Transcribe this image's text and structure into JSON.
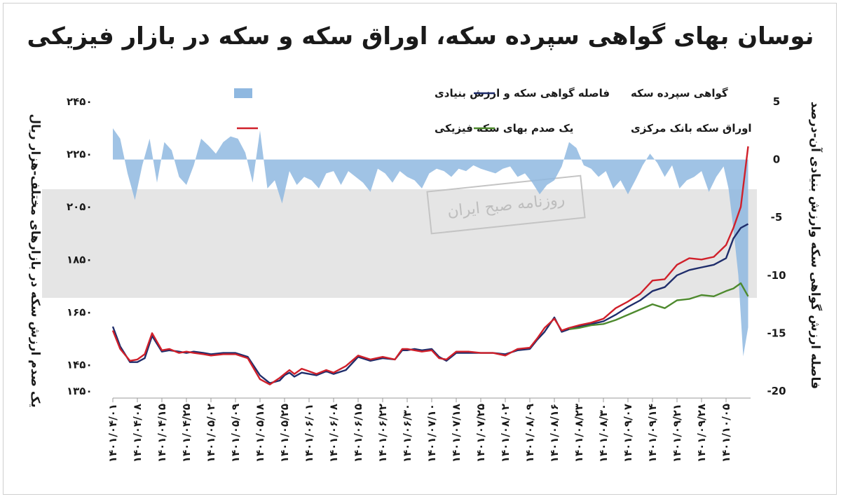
{
  "chart_data": {
    "type": "line",
    "title": "نوسان بهای گواهی سپرده سکه، اوراق سکه و سکه در بازار فیزیکی",
    "ylabel_left": "یک صدم ارزش سکه در بازارهای مختلف-هزار ریال",
    "ylabel_right": "فاصله ارزش گواهی سکه وارزش بنیادی آن-درصد",
    "ylim_left": [
      1350,
      2450
    ],
    "yticks_left": [
      "۱۳۵۰",
      "۱۴۵۰",
      "۱۶۵۰",
      "۱۸۵۰",
      "۲۰۵۰",
      "۲۲۵۰",
      "۲۴۵۰"
    ],
    "ylim_right": [
      -20,
      5
    ],
    "yticks_right": [
      "5",
      "0",
      "-5",
      "-10",
      "-15",
      "-20"
    ],
    "x_ticks": [
      "۱۴۰۱/۰۴/۰۱",
      "۱۴۰۱/۰۴/۰۸",
      "۱۴۰۱/۰۴/۱۵",
      "۱۴۰۱/۰۴/۲۵",
      "۱۴۰۱/۰۵/۰۲",
      "۱۴۰۱/۰۵/۰۹",
      "۱۴۰۱/۰۵/۱۸",
      "۱۴۰۱/۰۵/۲۵",
      "۱۴۰۱/۰۶/۰۱",
      "۱۴۰۱/۰۶/۰۸",
      "۱۴۰۱/۰۶/۱۵",
      "۱۴۰۱/۰۶/۲۲",
      "۱۴۰۱/۰۶/۳۰",
      "۱۴۰۱/۰۷/۱۰",
      "۱۴۰۱/۰۷/۱۸",
      "۱۴۰۱/۰۷/۲۵",
      "۱۴۰۱/۰۸/۰۲",
      "۱۴۰۱/۰۸/۰۹",
      "۱۴۰۱/۰۸/۱۶",
      "۱۴۰۱/۰۸/۲۳",
      "۱۴۰۱/۰۸/۳۰",
      "۱۴۰۱/۰۹/۰۷",
      "۱۴۰۱/۰۹/۱۴",
      "۱۴۰۱/۰۹/۲۱",
      "۱۴۰۱/۰۹/۲۸",
      "۱۴۰۱/۱۰/۰۵"
    ],
    "legend": {
      "placement": "top-right",
      "items": [
        {
          "label": "فاصله گواهی سکه و ارزش بنیادی",
          "kind": "area",
          "color": "#8fb8e0"
        },
        {
          "label": "گواهی سپرده سکه",
          "kind": "line",
          "color": "#1f2d6b"
        },
        {
          "label": "یک صدم بهای سکه فیزیکی",
          "kind": "line",
          "color": "#d0202a"
        },
        {
          "label": "اوراق سکه بانک مرکزی",
          "kind": "line",
          "color": "#4e8a2e"
        }
      ]
    },
    "series": [
      {
        "name": "گواهی سپرده سکه",
        "axis": "left",
        "color": "#1f2d6b",
        "x": [
          0.0,
          0.3,
          0.7,
          1.0,
          1.3,
          1.6,
          2.0,
          2.3,
          2.7,
          3.0,
          3.3,
          3.7,
          4.0,
          4.5,
          5.0,
          5.5,
          6.0,
          6.4,
          6.8,
          7.0,
          7.2,
          7.4,
          7.7,
          8.0,
          8.3,
          8.7,
          9.0,
          9.5,
          10.0,
          10.5,
          11.0,
          11.5,
          11.8,
          12.0,
          12.3,
          12.6,
          13.0,
          13.3,
          13.6,
          14.0,
          14.5,
          15.0,
          15.5,
          16.0,
          16.5,
          17.0,
          17.3,
          17.6,
          18.0,
          18.3,
          18.6,
          19.0,
          19.5,
          20.0,
          20.5,
          21.0,
          21.5,
          22.0,
          22.5,
          23.0,
          23.5,
          24.0,
          24.5,
          25.0,
          25.3,
          25.6,
          25.9
        ],
        "values": [
          1595,
          1520,
          1460,
          1460,
          1475,
          1560,
          1500,
          1505,
          1500,
          1495,
          1500,
          1495,
          1490,
          1495,
          1495,
          1480,
          1410,
          1380,
          1390,
          1410,
          1420,
          1405,
          1420,
          1415,
          1410,
          1425,
          1415,
          1430,
          1480,
          1465,
          1475,
          1470,
          1505,
          1505,
          1510,
          1505,
          1510,
          1480,
          1465,
          1495,
          1495,
          1495,
          1495,
          1490,
          1505,
          1510,
          1545,
          1575,
          1630,
          1575,
          1585,
          1595,
          1605,
          1615,
          1640,
          1670,
          1695,
          1730,
          1745,
          1790,
          1810,
          1820,
          1830,
          1855,
          1930,
          1970,
          1985
        ]
      },
      {
        "name": "یک صدم بهای سکه فیزیکی",
        "axis": "left",
        "color": "#d0202a",
        "x": [
          0.0,
          0.3,
          0.7,
          1.0,
          1.3,
          1.6,
          2.0,
          2.3,
          2.7,
          3.0,
          3.3,
          3.7,
          4.0,
          4.5,
          5.0,
          5.5,
          6.0,
          6.4,
          6.8,
          7.0,
          7.2,
          7.4,
          7.7,
          8.0,
          8.3,
          8.7,
          9.0,
          9.5,
          10.0,
          10.5,
          11.0,
          11.5,
          11.8,
          12.0,
          12.3,
          12.6,
          13.0,
          13.3,
          13.6,
          14.0,
          14.5,
          15.0,
          15.5,
          16.0,
          16.5,
          17.0,
          17.3,
          17.6,
          18.0,
          18.3,
          18.6,
          19.0,
          19.5,
          20.0,
          20.5,
          21.0,
          21.5,
          22.0,
          22.5,
          23.0,
          23.5,
          24.0,
          24.5,
          25.0,
          25.3,
          25.6,
          25.9
        ],
        "values": [
          1580,
          1510,
          1465,
          1470,
          1490,
          1570,
          1505,
          1510,
          1495,
          1500,
          1495,
          1490,
          1485,
          1490,
          1490,
          1475,
          1395,
          1375,
          1400,
          1415,
          1430,
          1415,
          1435,
          1425,
          1415,
          1430,
          1420,
          1445,
          1485,
          1470,
          1480,
          1470,
          1510,
          1510,
          1505,
          1500,
          1505,
          1475,
          1470,
          1500,
          1500,
          1495,
          1495,
          1485,
          1510,
          1515,
          1550,
          1590,
          1625,
          1580,
          1590,
          1600,
          1610,
          1625,
          1665,
          1690,
          1720,
          1770,
          1775,
          1830,
          1855,
          1850,
          1860,
          1905,
          1970,
          2050,
          2280
        ]
      },
      {
        "name": "اوراق سکه بانک مرکزی",
        "axis": "left",
        "color": "#4e8a2e",
        "x": [
          18.6,
          19.0,
          19.5,
          20.0,
          20.5,
          21.0,
          21.5,
          22.0,
          22.5,
          23.0,
          23.5,
          24.0,
          24.5,
          25.0,
          25.3,
          25.6,
          25.9
        ],
        "values": [
          1585,
          1590,
          1600,
          1605,
          1620,
          1640,
          1660,
          1680,
          1665,
          1695,
          1700,
          1715,
          1710,
          1730,
          1740,
          1760,
          1710
        ]
      },
      {
        "name": "فاصله گواهی سکه و ارزش بنیادی",
        "axis": "right",
        "color": "#8fb8e0",
        "kind": "area",
        "x": [
          0.0,
          0.3,
          0.6,
          0.9,
          1.2,
          1.5,
          1.8,
          2.1,
          2.4,
          2.7,
          3.0,
          3.3,
          3.6,
          3.9,
          4.2,
          4.5,
          4.8,
          5.1,
          5.4,
          5.7,
          6.0,
          6.3,
          6.6,
          6.9,
          7.2,
          7.5,
          7.8,
          8.1,
          8.4,
          8.7,
          9.0,
          9.3,
          9.6,
          9.9,
          10.2,
          10.5,
          10.8,
          11.1,
          11.4,
          11.7,
          12.0,
          12.3,
          12.6,
          12.9,
          13.2,
          13.5,
          13.8,
          14.1,
          14.4,
          14.7,
          15.0,
          15.3,
          15.6,
          15.9,
          16.2,
          16.5,
          16.8,
          17.1,
          17.4,
          17.7,
          18.0,
          18.3,
          18.6,
          18.9,
          19.2,
          19.5,
          19.8,
          20.1,
          20.4,
          20.7,
          21.0,
          21.3,
          21.6,
          21.9,
          22.2,
          22.5,
          22.8,
          23.1,
          23.4,
          23.7,
          24.0,
          24.3,
          24.6,
          24.9,
          25.1,
          25.3,
          25.5,
          25.7,
          25.9
        ],
        "values": [
          2.7,
          1.8,
          -1.2,
          -3.5,
          -0.5,
          1.8,
          -2.0,
          1.5,
          0.8,
          -1.5,
          -2.2,
          -0.5,
          1.8,
          1.2,
          0.5,
          1.5,
          2.0,
          1.8,
          0.6,
          -2.0,
          2.5,
          -2.5,
          -1.8,
          -3.8,
          -1.0,
          -2.2,
          -1.5,
          -1.8,
          -2.5,
          -1.2,
          -1.0,
          -2.2,
          -1.0,
          -1.5,
          -2.0,
          -2.8,
          -0.8,
          -1.2,
          -2.0,
          -1.0,
          -1.5,
          -1.8,
          -2.5,
          -1.2,
          -0.8,
          -1.0,
          -1.5,
          -0.8,
          -1.0,
          -0.5,
          -0.8,
          -1.0,
          -1.2,
          -0.8,
          -0.6,
          -1.5,
          -1.2,
          -2.0,
          -3.0,
          -2.2,
          -1.8,
          -0.6,
          1.5,
          1.0,
          -0.5,
          -0.8,
          -1.5,
          -1.0,
          -2.5,
          -1.8,
          -3.0,
          -1.8,
          -0.5,
          0.5,
          -0.3,
          -1.5,
          -0.5,
          -2.5,
          -1.8,
          -1.5,
          -1.0,
          -2.8,
          -1.5,
          -0.6,
          -2.5,
          -6.0,
          -10.0,
          -17.0,
          -14.5
        ]
      }
    ],
    "watermark": {
      "text": "روزنامه صبح ایران"
    }
  }
}
